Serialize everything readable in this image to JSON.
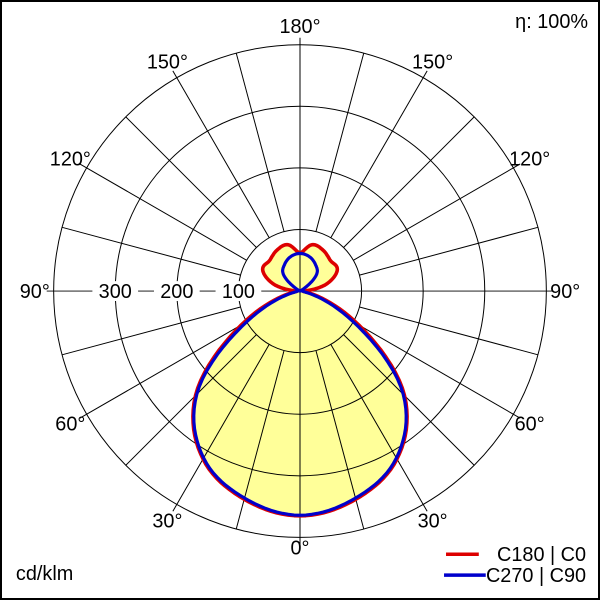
{
  "chart_data": {
    "type": "polar-line",
    "unit": "cd/klm",
    "efficiency_label": "η: 100%",
    "angle_label_suffix": "°",
    "angle_labels_deg": [
      0,
      30,
      60,
      90,
      120,
      150,
      180
    ],
    "grid_step_deg": 15,
    "radial_ticks": [
      100,
      200,
      300
    ],
    "radial_max": 400,
    "fill_color": "#ffff99",
    "grid_color": "#000000",
    "series": [
      {
        "name": "C180 | C0",
        "color": "#dd0000",
        "gamma_deg": [
          0,
          15,
          30,
          45,
          60,
          75,
          90,
          105,
          120,
          135,
          150,
          165,
          180
        ],
        "values_cd_per_klm": [
          365,
          350,
          315,
          240,
          110,
          25,
          6,
          45,
          70,
          70,
          76,
          78,
          62
        ]
      },
      {
        "name": "C270 | C90",
        "color": "#0000cc",
        "gamma_deg": [
          0,
          15,
          30,
          45,
          60,
          75,
          90,
          105,
          120,
          135,
          150,
          165,
          180
        ],
        "values_cd_per_klm": [
          364,
          348,
          313,
          237,
          100,
          18,
          4,
          2,
          4,
          38,
          50,
          58,
          61
        ]
      }
    ]
  }
}
